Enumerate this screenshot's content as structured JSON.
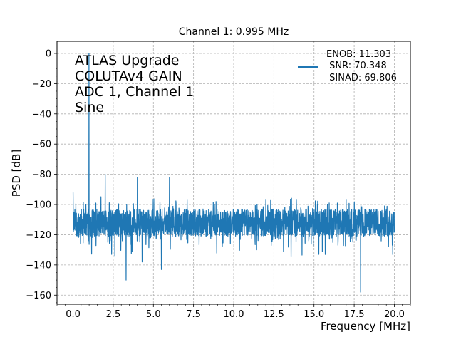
{
  "chart_data": {
    "type": "line",
    "title": "Channel 1: 0.995 MHz",
    "xlabel": "Frequency [MHz]",
    "ylabel": "PSD [dB]",
    "xlim": [
      -1.0,
      21.0
    ],
    "ylim": [
      -166,
      8
    ],
    "x_ticks": [
      0.0,
      2.5,
      5.0,
      7.5,
      10.0,
      12.5,
      15.0,
      17.5,
      20.0
    ],
    "x_tick_labels": [
      "0.0",
      "2.5",
      "5.0",
      "7.5",
      "10.0",
      "12.5",
      "15.0",
      "17.5",
      "20.0"
    ],
    "y_ticks": [
      0,
      -20,
      -40,
      -60,
      -80,
      -100,
      -120,
      -140,
      -160
    ],
    "y_tick_labels": [
      "0",
      "−20",
      "−40",
      "−60",
      "−80",
      "−100",
      "−120",
      "−140",
      "−160"
    ],
    "grid": true,
    "grid_style": "dashed",
    "legend_position": "top-right",
    "series_color": "#1f77b4",
    "legend_lines": [
      "ENOB: 11.303",
      " SNR: 70.348",
      " SINAD: 69.806"
    ],
    "annotation_lines": [
      "ATLAS Upgrade",
      "COLUTAv4 GAIN",
      "ADC 1, Channel 1",
      "Sine"
    ],
    "noise": {
      "x_range": [
        0.0,
        20.0
      ],
      "floor_center": -112,
      "spread": 9
    },
    "peaks": [
      {
        "x": 0.0,
        "y": -92
      },
      {
        "x": 0.995,
        "y": 0
      },
      {
        "x": 2.0,
        "y": -80
      },
      {
        "x": 4.0,
        "y": -82
      },
      {
        "x": 6.0,
        "y": -82
      },
      {
        "x": 7.1,
        "y": -97
      },
      {
        "x": 8.9,
        "y": -98
      },
      {
        "x": 12.0,
        "y": -97
      },
      {
        "x": 13.9,
        "y": -97
      },
      {
        "x": 17.0,
        "y": -97
      }
    ],
    "dips": [
      {
        "x": 3.3,
        "y": -150
      },
      {
        "x": 4.3,
        "y": -138
      },
      {
        "x": 5.5,
        "y": -143
      },
      {
        "x": 2.4,
        "y": -133
      },
      {
        "x": 13.1,
        "y": -131
      },
      {
        "x": 15.3,
        "y": -133
      },
      {
        "x": 17.9,
        "y": -158
      }
    ]
  }
}
